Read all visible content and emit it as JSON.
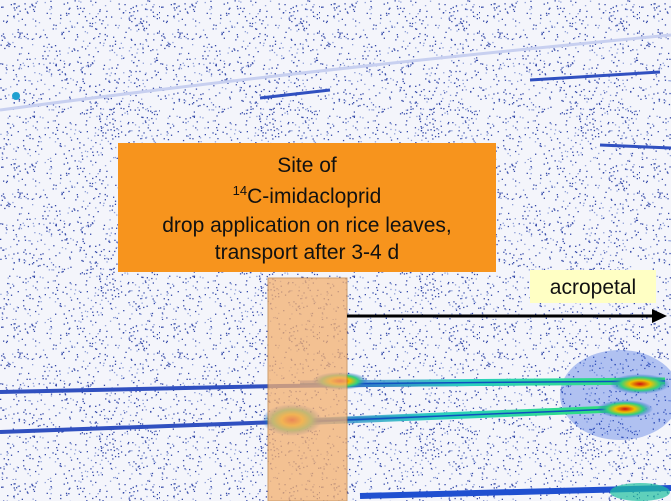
{
  "label_box": {
    "line1": "Site of",
    "isotope": "14",
    "compound": "C-imidacloprid",
    "line3": "drop application on rice leaves,",
    "line4": "transport after 3-4 d"
  },
  "arrow_label": "acropetal"
}
